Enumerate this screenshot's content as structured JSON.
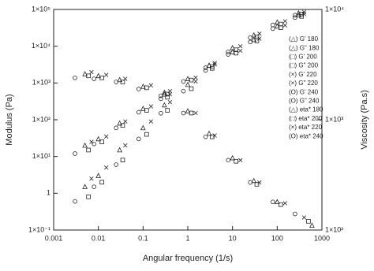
{
  "chart_data": {
    "type": "scatter",
    "x_label": "Angular frequency (1/s)",
    "y_label": "Modulus (Pa)",
    "y2_label": "Viscosity (Pa.s)",
    "xscale": "log",
    "yscale": "log",
    "y2scale": "log",
    "xlim": [
      0.001,
      1000
    ],
    "xticks": [
      0.001,
      0.01,
      0.1,
      1,
      10,
      100,
      1000
    ],
    "ylim": [
      0.1,
      100000
    ],
    "yticks": [
      {
        "value": 0.1,
        "label": "1×10⁻¹"
      },
      1,
      {
        "value": 10,
        "label": "1×10¹"
      },
      {
        "value": 100,
        "label": "1×10²"
      },
      {
        "value": 1000,
        "label": "1×10³"
      },
      {
        "value": 10000,
        "label": "1×10⁴"
      },
      {
        "value": 100000,
        "label": "1×10⁵"
      }
    ],
    "y2lim": [
      100,
      10000
    ],
    "y2ticks": [
      {
        "value": 100,
        "label": "1×10²"
      },
      {
        "value": 1000,
        "label": "1×10³"
      },
      {
        "value": 10000,
        "label": "1×10⁴"
      }
    ],
    "series": [
      {
        "name": "(△) G' 180",
        "marker": "triangle",
        "color": "#222222",
        "x": [
          0.005,
          0.01,
          0.03,
          0.1,
          0.3,
          1,
          3,
          10,
          30,
          100,
          300
        ],
        "values": [
          1.5,
          3,
          15,
          60,
          250,
          900,
          3000,
          9000,
          20000,
          45000,
          80000
        ]
      },
      {
        "name": "(△) G\" 180",
        "marker": "triangle",
        "color": "#222222",
        "x": [
          0.005,
          0.01,
          0.03,
          0.1,
          0.3,
          1,
          3,
          10,
          30,
          100,
          300
        ],
        "values": [
          20,
          30,
          80,
          200,
          550,
          1300,
          3000,
          7000,
          15000,
          35000,
          70000
        ]
      },
      {
        "name": "(□) G' 200",
        "marker": "square",
        "color": "#222222",
        "x": [
          0.006,
          0.012,
          0.035,
          0.12,
          0.35,
          1.2,
          3.5,
          12,
          35,
          120,
          350
        ],
        "values": [
          0.8,
          2,
          8,
          40,
          180,
          700,
          2500,
          8000,
          18000,
          40000,
          75000
        ]
      },
      {
        "name": "(□) G\" 200",
        "marker": "square",
        "color": "#222222",
        "x": [
          0.006,
          0.012,
          0.035,
          0.12,
          0.35,
          1.2,
          3.5,
          12,
          35,
          120,
          350
        ],
        "values": [
          15,
          25,
          70,
          180,
          500,
          1200,
          2800,
          6500,
          14000,
          32000,
          65000
        ]
      },
      {
        "name": "(×) G' 220",
        "marker": "cross",
        "color": "#222222",
        "x": [
          0.007,
          0.015,
          0.04,
          0.15,
          0.4,
          1.5,
          4,
          15,
          40,
          150,
          400
        ],
        "values": [
          2.5,
          5,
          20,
          90,
          300,
          1100,
          3500,
          10000,
          22000,
          48000,
          85000
        ]
      },
      {
        "name": "(×) G\" 220",
        "marker": "cross",
        "color": "#222222",
        "x": [
          0.007,
          0.015,
          0.04,
          0.15,
          0.4,
          1.5,
          4,
          15,
          40,
          150,
          400
        ],
        "values": [
          25,
          35,
          90,
          230,
          600,
          1400,
          3200,
          7500,
          16000,
          37000,
          75000
        ]
      },
      {
        "name": "(O) G' 240",
        "marker": "circle",
        "color": "#222222",
        "x": [
          0.003,
          0.008,
          0.025,
          0.08,
          0.25,
          0.8,
          2.5,
          8,
          25,
          80,
          250
        ],
        "values": [
          0.6,
          1.5,
          6,
          30,
          150,
          600,
          2200,
          7000,
          17000,
          38000,
          70000
        ]
      },
      {
        "name": "(O) G\" 240",
        "marker": "circle",
        "color": "#222222",
        "x": [
          0.003,
          0.008,
          0.025,
          0.08,
          0.25,
          0.8,
          2.5,
          8,
          25,
          80,
          250
        ],
        "values": [
          12,
          22,
          60,
          160,
          450,
          1100,
          2600,
          6000,
          13000,
          30000,
          60000
        ]
      },
      {
        "name": "(△) eta* 180",
        "marker": "triangle",
        "color": "#222222",
        "axis": "y2",
        "x": [
          0.005,
          0.01,
          0.03,
          0.1,
          0.3,
          1,
          3,
          10,
          30,
          100,
          600
        ],
        "values": [
          2600,
          2500,
          2300,
          2000,
          1700,
          1200,
          750,
          450,
          280,
          180,
          110
        ]
      },
      {
        "name": "(□) eta* 200",
        "marker": "square",
        "color": "#222222",
        "axis": "y2",
        "x": [
          0.006,
          0.012,
          0.035,
          0.12,
          0.35,
          1.2,
          3.5,
          12,
          35,
          120,
          500
        ],
        "values": [
          2500,
          2400,
          2200,
          1950,
          1600,
          1150,
          700,
          420,
          260,
          170,
          120
        ]
      },
      {
        "name": "(×) eta* 220",
        "marker": "cross",
        "color": "#222222",
        "axis": "y2",
        "x": [
          0.007,
          0.015,
          0.04,
          0.15,
          0.4,
          1.5,
          4,
          15,
          40,
          150,
          400
        ],
        "values": [
          2700,
          2550,
          2350,
          2050,
          1700,
          1150,
          720,
          430,
          270,
          175,
          130
        ]
      },
      {
        "name": "(O) eta* 240",
        "marker": "circle",
        "color": "#222222",
        "axis": "y2",
        "x": [
          0.003,
          0.008,
          0.025,
          0.08,
          0.25,
          0.8,
          2.5,
          8,
          25,
          80,
          250
        ],
        "values": [
          2400,
          2350,
          2200,
          1900,
          1550,
          1150,
          700,
          430,
          270,
          180,
          140
        ]
      }
    ]
  }
}
